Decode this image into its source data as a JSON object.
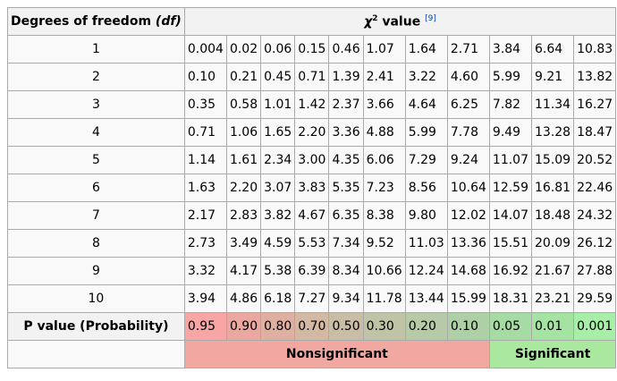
{
  "header": {
    "df_label": "Degrees of freedom",
    "df_italic": "(df)",
    "chi_symbol": "χ",
    "chi_sup": "2",
    "chi_text": " value",
    "ref": "[9]"
  },
  "rows": [
    {
      "df": "1",
      "values": [
        "0.004",
        "0.02",
        "0.06",
        "0.15",
        "0.46",
        "1.07",
        "1.64",
        "2.71",
        "3.84",
        "6.64",
        "10.83"
      ]
    },
    {
      "df": "2",
      "values": [
        "0.10",
        "0.21",
        "0.45",
        "0.71",
        "1.39",
        "2.41",
        "3.22",
        "4.60",
        "5.99",
        "9.21",
        "13.82"
      ]
    },
    {
      "df": "3",
      "values": [
        "0.35",
        "0.58",
        "1.01",
        "1.42",
        "2.37",
        "3.66",
        "4.64",
        "6.25",
        "7.82",
        "11.34",
        "16.27"
      ]
    },
    {
      "df": "4",
      "values": [
        "0.71",
        "1.06",
        "1.65",
        "2.20",
        "3.36",
        "4.88",
        "5.99",
        "7.78",
        "9.49",
        "13.28",
        "18.47"
      ]
    },
    {
      "df": "5",
      "values": [
        "1.14",
        "1.61",
        "2.34",
        "3.00",
        "4.35",
        "6.06",
        "7.29",
        "9.24",
        "11.07",
        "15.09",
        "20.52"
      ]
    },
    {
      "df": "6",
      "values": [
        "1.63",
        "2.20",
        "3.07",
        "3.83",
        "5.35",
        "7.23",
        "8.56",
        "10.64",
        "12.59",
        "16.81",
        "22.46"
      ]
    },
    {
      "df": "7",
      "values": [
        "2.17",
        "2.83",
        "3.82",
        "4.67",
        "6.35",
        "8.38",
        "9.80",
        "12.02",
        "14.07",
        "18.48",
        "24.32"
      ]
    },
    {
      "df": "8",
      "values": [
        "2.73",
        "3.49",
        "4.59",
        "5.53",
        "7.34",
        "9.52",
        "11.03",
        "13.36",
        "15.51",
        "20.09",
        "26.12"
      ]
    },
    {
      "df": "9",
      "values": [
        "3.32",
        "4.17",
        "5.38",
        "6.39",
        "8.34",
        "10.66",
        "12.24",
        "14.68",
        "16.92",
        "21.67",
        "27.88"
      ]
    },
    {
      "df": "10",
      "values": [
        "3.94",
        "4.86",
        "6.18",
        "7.27",
        "9.34",
        "11.78",
        "13.44",
        "15.99",
        "18.31",
        "23.21",
        "29.59"
      ]
    }
  ],
  "p_row": {
    "label": "P value (Probability)",
    "values": [
      "0.95",
      "0.90",
      "0.80",
      "0.70",
      "0.50",
      "0.30",
      "0.20",
      "0.10",
      "0.05",
      "0.01",
      "0.001"
    ],
    "colors": [
      "#f7a5a5",
      "#eba8a1",
      "#dfb0a2",
      "#d3b8a4",
      "#c9bea5",
      "#bfc4a6",
      "#b6caa7",
      "#aed0a6",
      "#a6dca3",
      "#a4e3a2",
      "#a7eea7"
    ]
  },
  "footer": {
    "nonsignificant": "Nonsignificant",
    "significant": "Significant",
    "nonsig_color": "#f0a8a0",
    "sig_color": "#aae8a0"
  }
}
